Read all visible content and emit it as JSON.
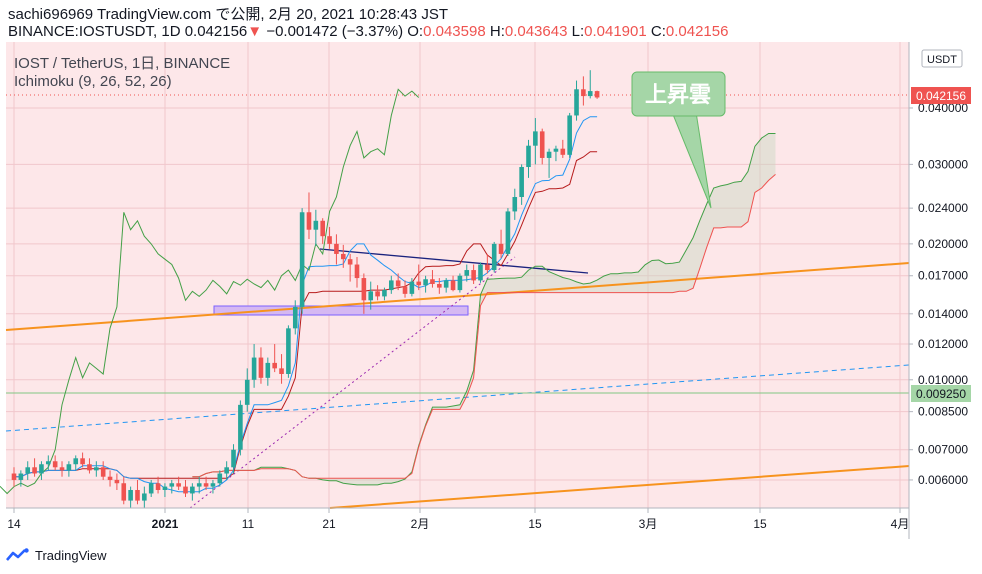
{
  "header": {
    "line1": "sachi696969 TradingView.com で公開, 2月 20, 2021 10:28:43 JST",
    "symbol": "BINANCE:IOSTUSDT, 1D",
    "price": "0.042156",
    "change_arrow": "▼",
    "change": "−0.001472 (−3.37%)",
    "o_label": "O:",
    "o": "0.043598",
    "h_label": "H:",
    "h": "0.043643",
    "l_label": "L:",
    "l": "0.041901",
    "c_label": "C:",
    "c": "0.042156"
  },
  "legend": {
    "pair": "IOST / TetherUS, 1日, BINANCE",
    "indicator": "Ichimoku (9, 26, 52, 26)"
  },
  "annotation": "上昇雲",
  "currency": "USDT",
  "last_price_label": "0.042156",
  "level_label": "0.009250",
  "footer": {
    "brand": "TradingView"
  },
  "colors": {
    "up": "#26a69a",
    "down": "#ef5350",
    "tenkan": "#2196f3",
    "kijun": "#b71c1c",
    "chikou": "#43a047",
    "span_a": "#43a047",
    "span_b": "#ef5350",
    "trendline": "#f7931e",
    "callout": "#a5d6a7",
    "highlight": "#ce93d8"
  },
  "chart_data": {
    "type": "candlestick",
    "y_scale": "log",
    "ylim": [
      0.0052,
      0.056
    ],
    "y_ticks": [
      "0.040000",
      "0.030000",
      "0.024000",
      "0.020000",
      "0.017000",
      "0.014000",
      "0.012000",
      "0.010000",
      "0.008500",
      "0.007000",
      "0.006000"
    ],
    "x_ticks": [
      "14",
      "2021",
      "11",
      "21",
      "2月",
      "15",
      "3月",
      "15",
      "4月"
    ],
    "ohlc": [
      [
        0.0062,
        0.0064,
        0.0058,
        0.006
      ],
      [
        0.006,
        0.0063,
        0.0058,
        0.0062
      ],
      [
        0.0062,
        0.0066,
        0.006,
        0.0064
      ],
      [
        0.0064,
        0.0067,
        0.0061,
        0.0062
      ],
      [
        0.0062,
        0.0066,
        0.006,
        0.0065
      ],
      [
        0.0065,
        0.0068,
        0.0063,
        0.0066
      ],
      [
        0.0066,
        0.0068,
        0.0063,
        0.0064
      ],
      [
        0.0064,
        0.0066,
        0.0061,
        0.0063
      ],
      [
        0.0063,
        0.0066,
        0.0061,
        0.0065
      ],
      [
        0.0065,
        0.0068,
        0.0063,
        0.0067
      ],
      [
        0.0067,
        0.0069,
        0.0064,
        0.0065
      ],
      [
        0.0065,
        0.0067,
        0.0062,
        0.0063
      ],
      [
        0.0063,
        0.0066,
        0.0061,
        0.0064
      ],
      [
        0.0064,
        0.0066,
        0.006,
        0.0061
      ],
      [
        0.0061,
        0.0063,
        0.0058,
        0.006
      ],
      [
        0.006,
        0.0062,
        0.0057,
        0.0059
      ],
      [
        0.0059,
        0.0061,
        0.0053,
        0.0054
      ],
      [
        0.0054,
        0.0058,
        0.0052,
        0.0057
      ],
      [
        0.0057,
        0.006,
        0.0053,
        0.0054
      ],
      [
        0.0054,
        0.0058,
        0.0052,
        0.0056
      ],
      [
        0.0056,
        0.006,
        0.0055,
        0.0059
      ],
      [
        0.0059,
        0.0061,
        0.0056,
        0.0057
      ],
      [
        0.0057,
        0.0059,
        0.0055,
        0.0058
      ],
      [
        0.0058,
        0.006,
        0.0056,
        0.0059
      ],
      [
        0.0059,
        0.0061,
        0.0057,
        0.0058
      ],
      [
        0.0058,
        0.006,
        0.0055,
        0.0056
      ],
      [
        0.0056,
        0.0059,
        0.0054,
        0.0058
      ],
      [
        0.0058,
        0.0061,
        0.0056,
        0.0059
      ],
      [
        0.0059,
        0.0061,
        0.0057,
        0.0058
      ],
      [
        0.0058,
        0.006,
        0.0056,
        0.0059
      ],
      [
        0.0059,
        0.0063,
        0.0058,
        0.0062
      ],
      [
        0.0062,
        0.0066,
        0.006,
        0.0064
      ],
      [
        0.0064,
        0.0072,
        0.0062,
        0.007
      ],
      [
        0.007,
        0.009,
        0.0068,
        0.0088
      ],
      [
        0.0088,
        0.0106,
        0.0085,
        0.01
      ],
      [
        0.01,
        0.012,
        0.0096,
        0.0112
      ],
      [
        0.0112,
        0.0118,
        0.0098,
        0.0101
      ],
      [
        0.0101,
        0.0112,
        0.0097,
        0.0109
      ],
      [
        0.0109,
        0.012,
        0.0104,
        0.0106
      ],
      [
        0.0106,
        0.0114,
        0.0098,
        0.0103
      ],
      [
        0.0103,
        0.0132,
        0.0101,
        0.013
      ],
      [
        0.013,
        0.015,
        0.0126,
        0.0145
      ],
      [
        0.0145,
        0.024,
        0.014,
        0.0235
      ],
      [
        0.0235,
        0.026,
        0.0205,
        0.0215
      ],
      [
        0.0215,
        0.0238,
        0.0198,
        0.0225
      ],
      [
        0.0225,
        0.0228,
        0.02,
        0.0208
      ],
      [
        0.0208,
        0.0218,
        0.0195,
        0.02
      ],
      [
        0.02,
        0.021,
        0.018,
        0.019
      ],
      [
        0.019,
        0.0199,
        0.0177,
        0.0185
      ],
      [
        0.0185,
        0.019,
        0.0165,
        0.018
      ],
      [
        0.018,
        0.0187,
        0.016,
        0.0168
      ],
      [
        0.0168,
        0.0172,
        0.014,
        0.015
      ],
      [
        0.015,
        0.0165,
        0.0143,
        0.0157
      ],
      [
        0.0157,
        0.0162,
        0.015,
        0.0153
      ],
      [
        0.0153,
        0.016,
        0.015,
        0.0158
      ],
      [
        0.0158,
        0.017,
        0.0155,
        0.0166
      ],
      [
        0.0166,
        0.0172,
        0.0158,
        0.0161
      ],
      [
        0.0161,
        0.0166,
        0.0152,
        0.0155
      ],
      [
        0.0155,
        0.0168,
        0.0153,
        0.0165
      ],
      [
        0.0165,
        0.018,
        0.0158,
        0.0162
      ],
      [
        0.0162,
        0.017,
        0.0156,
        0.0167
      ],
      [
        0.0167,
        0.0175,
        0.016,
        0.0163
      ],
      [
        0.0163,
        0.0168,
        0.0155,
        0.016
      ],
      [
        0.016,
        0.0168,
        0.0156,
        0.0166
      ],
      [
        0.0166,
        0.017,
        0.0157,
        0.0158
      ],
      [
        0.0158,
        0.0172,
        0.0156,
        0.017
      ],
      [
        0.017,
        0.018,
        0.0165,
        0.0175
      ],
      [
        0.0175,
        0.018,
        0.0163,
        0.0166
      ],
      [
        0.0166,
        0.0182,
        0.0164,
        0.018
      ],
      [
        0.018,
        0.019,
        0.0172,
        0.0175
      ],
      [
        0.0175,
        0.0202,
        0.0173,
        0.02
      ],
      [
        0.02,
        0.0215,
        0.0186,
        0.019
      ],
      [
        0.019,
        0.024,
        0.0188,
        0.0236
      ],
      [
        0.0236,
        0.0265,
        0.0226,
        0.0254
      ],
      [
        0.0254,
        0.03,
        0.0244,
        0.0296
      ],
      [
        0.0296,
        0.034,
        0.028,
        0.033
      ],
      [
        0.033,
        0.038,
        0.03,
        0.0355
      ],
      [
        0.0355,
        0.036,
        0.03,
        0.031
      ],
      [
        0.031,
        0.0325,
        0.028,
        0.032
      ],
      [
        0.032,
        0.033,
        0.0305,
        0.0325
      ],
      [
        0.0325,
        0.034,
        0.031,
        0.0315
      ],
      [
        0.0315,
        0.039,
        0.031,
        0.0385
      ],
      [
        0.0385,
        0.046,
        0.0375,
        0.044
      ],
      [
        0.044,
        0.047,
        0.0405,
        0.0425
      ],
      [
        0.0425,
        0.0485,
        0.042,
        0.0436
      ],
      [
        0.0436,
        0.0437,
        0.0419,
        0.0422
      ]
    ]
  }
}
